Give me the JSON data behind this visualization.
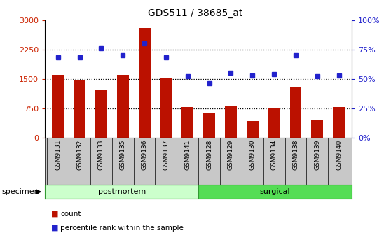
{
  "title": "GDS511 / 38685_at",
  "categories": [
    "GSM9131",
    "GSM9132",
    "GSM9133",
    "GSM9135",
    "GSM9136",
    "GSM9137",
    "GSM9141",
    "GSM9128",
    "GSM9129",
    "GSM9130",
    "GSM9134",
    "GSM9138",
    "GSM9139",
    "GSM9140"
  ],
  "counts": [
    1600,
    1470,
    1200,
    1600,
    2800,
    1520,
    780,
    640,
    800,
    420,
    760,
    1280,
    460,
    780
  ],
  "percentiles": [
    68,
    68,
    76,
    70,
    80,
    68,
    52,
    46,
    55,
    53,
    54,
    70,
    52,
    53
  ],
  "postmortem_count": 7,
  "surgical_count": 7,
  "ylim_left": [
    0,
    3000
  ],
  "ylim_right": [
    0,
    100
  ],
  "yticks_left": [
    0,
    750,
    1500,
    2250,
    3000
  ],
  "yticks_right": [
    0,
    25,
    50,
    75,
    100
  ],
  "bar_color": "#bb1100",
  "dot_color": "#2222cc",
  "postmortem_color": "#ccffcc",
  "surgical_color": "#55dd55",
  "tick_label_color_left": "#cc2200",
  "tick_label_color_right": "#2222cc",
  "postmortem_label": "postmortem",
  "surgical_label": "surgical",
  "specimen_label": "specimen",
  "legend_count_label": "count",
  "legend_percentile_label": "percentile rank within the sample",
  "background_color": "#ffffff",
  "xtick_bg_color": "#c8c8c8",
  "grid_yticks": [
    750,
    1500,
    2250
  ]
}
